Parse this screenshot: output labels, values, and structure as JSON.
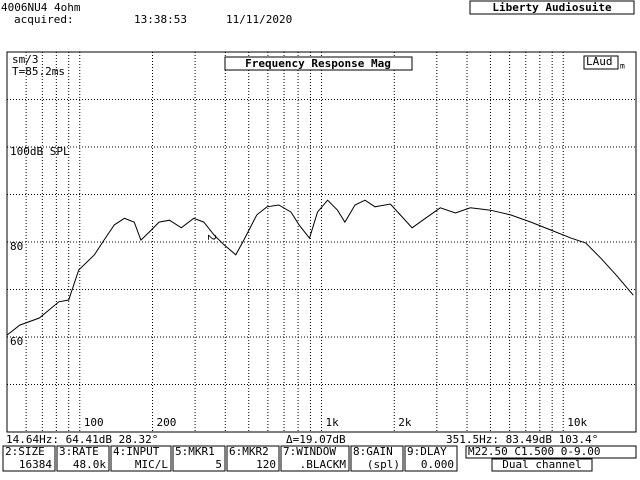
{
  "header": {
    "device": "4006NU4  4ohm",
    "acquired": "acquired:",
    "time": "13:38:53",
    "date": "11/11/2020",
    "app": "Liberty Audiosuite"
  },
  "chart_data": {
    "type": "line",
    "title": "Frequency Response Mag",
    "badge": "LAud",
    "badge_sub": "m",
    "annotations": [
      "sm/3",
      "T=85.2ms"
    ],
    "marker": "2",
    "log_x": true,
    "grid": true,
    "x": [
      50,
      56.5,
      68,
      82,
      90,
      99,
      115,
      126,
      139,
      153,
      168,
      179,
      194,
      213,
      235,
      263,
      296,
      326,
      359,
      395,
      442,
      477,
      540,
      595,
      666,
      748,
      808,
      892,
      963,
      1060,
      1165,
      1250,
      1376,
      1513,
      1665,
      1925,
      2118,
      2370,
      2690,
      3100,
      3580,
      4130,
      5000,
      6060,
      7350,
      8900,
      10800,
      12400,
      14300,
      16600,
      19500
    ],
    "series": [
      {
        "color": "#000000",
        "values": [
          60.4,
          62.5,
          64,
          67.4,
          67.8,
          74.1,
          77.3,
          80.4,
          83.6,
          85,
          84.2,
          80.4,
          82.1,
          84.2,
          84.6,
          83,
          85,
          84.2,
          81.5,
          79.4,
          77.3,
          80.4,
          85.7,
          87.4,
          87.8,
          86.3,
          83.6,
          80.8,
          86.3,
          88.8,
          86.7,
          84.2,
          87.8,
          88.8,
          87.4,
          88,
          85.7,
          83,
          85,
          87.2,
          86.1,
          87.2,
          86.7,
          85.7,
          84.2,
          82.5,
          80.8,
          79.8,
          76.6,
          73,
          68.8
        ]
      }
    ],
    "xlim": [
      50,
      20000
    ],
    "ylim": [
      40,
      120
    ],
    "xticks": [
      100,
      200,
      {
        "value": 1000,
        "label": "1k"
      },
      {
        "value": 2000,
        "label": "2k"
      },
      {
        "value": 10000,
        "label": "10k"
      }
    ],
    "yticks": [
      {
        "value": 100,
        "label": "100dB SPL"
      },
      80,
      60
    ],
    "xgrid": [
      60,
      70,
      80,
      90,
      100,
      200,
      300,
      400,
      500,
      600,
      700,
      800,
      900,
      1000,
      2000,
      3000,
      4000,
      5000,
      6000,
      7000,
      8000,
      9000,
      10000
    ],
    "ygrid": [
      50,
      60,
      70,
      80,
      90,
      100,
      110
    ]
  },
  "status": {
    "left": "14.64Hz: 64.41dB  28.32°",
    "delta": "Δ=19.07dB",
    "right": "351.5Hz: 83.49dB 103.4°"
  },
  "keys": [
    {
      "label": "2:SIZE",
      "value": "16384"
    },
    {
      "label": "3:RATE",
      "value": "48.0k"
    },
    {
      "label": "4:INPUT",
      "value": "MIC/L"
    },
    {
      "label": "5:MKR1",
      "value": "5"
    },
    {
      "label": "6:MKR2",
      "value": "120"
    },
    {
      "label": "7:WINDOW",
      "value": ".BLACKM"
    },
    {
      "label": "8:GAIN",
      "value": "(spl)"
    },
    {
      "label": "9:DLAY",
      "value": "0.000"
    }
  ],
  "settings": "M22.50 C1.500 0-9.00",
  "mode": "Dual channel"
}
